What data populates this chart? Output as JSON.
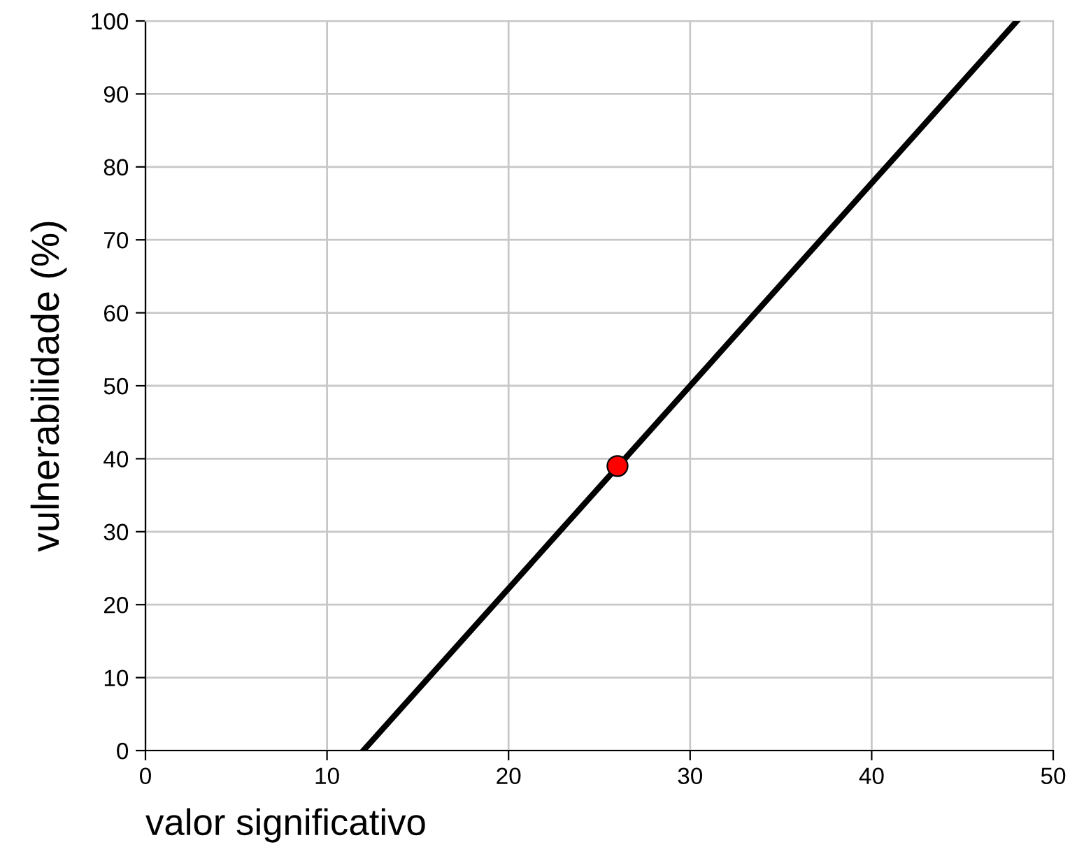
{
  "chart_data": {
    "type": "line",
    "xlabel": "valor significativo",
    "ylabel": "vulnerabilidade (%)",
    "xlim": [
      0,
      50
    ],
    "ylim": [
      0,
      100
    ],
    "xticks": [
      0,
      10,
      20,
      30,
      40,
      50
    ],
    "yticks": [
      0,
      10,
      20,
      30,
      40,
      50,
      60,
      70,
      80,
      90,
      100
    ],
    "grid": true,
    "series": [
      {
        "color": "#000000",
        "x": [
          12,
          48
        ],
        "values": [
          0,
          100
        ],
        "marker": "none",
        "line_style": "solid"
      },
      {
        "type": "scatter",
        "color": "#ff0000",
        "x": [
          26
        ],
        "values": [
          39
        ],
        "marker": "circle"
      }
    ]
  }
}
